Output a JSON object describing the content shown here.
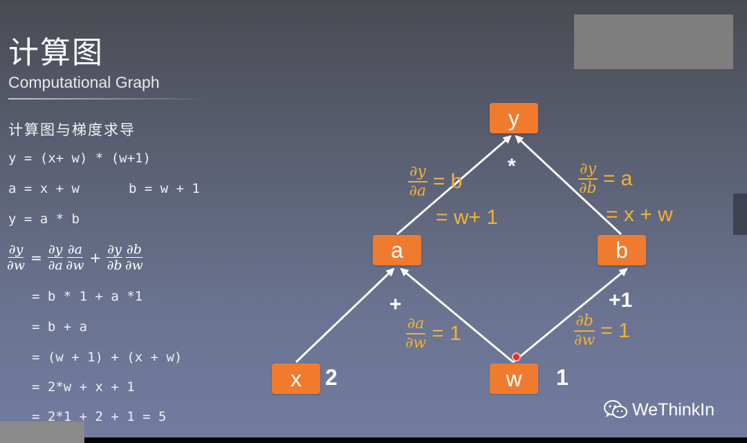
{
  "title": "计算图",
  "subtitle": "Computational Graph",
  "section": "计算图与梯度求导",
  "equations": {
    "eq1": "y = (x+ w) * (w+1)",
    "eq2a": "a = x + w",
    "eq2b": "b = w + 1",
    "eq3": "y = a * b",
    "step1": "= b * 1 + a *1",
    "step2": "= b + a",
    "step3": "= (w + 1) + (x + w)",
    "step4": "= 2*w + x + 1",
    "step5": "= 2*1 + 2 + 1 = 5"
  },
  "derivative": {
    "lhs_num": "∂y",
    "lhs_den": "∂w",
    "t1_num": "∂y",
    "t1_den": "∂a",
    "t2_num": "∂a",
    "t2_den": "∂w",
    "t3_num": "∂y",
    "t3_den": "∂b",
    "t4_num": "∂b",
    "t4_den": "∂w",
    "eq": "=",
    "plus": "+"
  },
  "graph": {
    "nodes": {
      "y": "y",
      "a": "a",
      "b": "b",
      "x": "x",
      "w": "w"
    },
    "values": {
      "x": "2",
      "w": "1"
    },
    "ops": {
      "mul": "*",
      "add": "+",
      "add1": "+1"
    },
    "labels": {
      "dy_da": {
        "num": "∂y",
        "den": "∂a",
        "eq": "= b",
        "extra": "= w+ 1"
      },
      "dy_db": {
        "num": "∂y",
        "den": "∂b",
        "eq": "= a",
        "extra": "= x + w"
      },
      "da_dw": {
        "num": "∂a",
        "den": "∂w",
        "eq": "= 1"
      },
      "db_dw": {
        "num": "∂b",
        "den": "∂w",
        "eq": "= 1"
      }
    }
  },
  "brand": {
    "icon": "wechat-icon",
    "name": "WeThinkIn"
  },
  "colors": {
    "node": "#f07b2e",
    "label": "#f2b233",
    "cursor": "#e0302a"
  }
}
